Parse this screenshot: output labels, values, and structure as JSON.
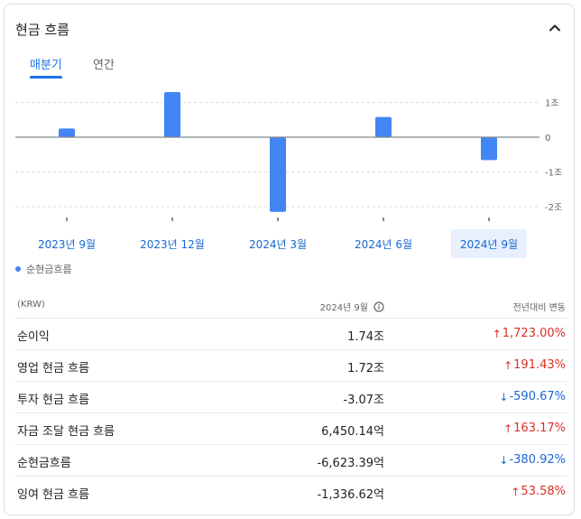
{
  "header": {
    "title": "현금 흐름"
  },
  "tabs": [
    {
      "label": "매분기"
    },
    {
      "label": "연간"
    }
  ],
  "chart_data": {
    "type": "bar",
    "categories": [
      "2023년 9월",
      "2023년 12월",
      "2024년 3월",
      "2024년 6월",
      "2024년 9월"
    ],
    "series": [
      {
        "name": "순현금흐름",
        "values": [
          0.25,
          1.3,
          -2.15,
          0.58,
          -0.66
        ]
      }
    ],
    "y_unit": "조",
    "ylim": [
      -2.2,
      1.2
    ],
    "yticks": [
      {
        "value": 1,
        "label": "1조"
      },
      {
        "value": 0,
        "label": "0"
      },
      {
        "value": -1,
        "label": "-1조"
      },
      {
        "value": -2,
        "label": "-2조"
      }
    ],
    "selected_index": 4,
    "bar_color": "#4285f4"
  },
  "legend": {
    "label": "순현금흐름"
  },
  "table": {
    "headers": {
      "unit": "(KRW)",
      "period": "2024년 9월",
      "change": "전년대비 변동"
    },
    "rows": [
      {
        "label": "순이익",
        "value": "1.74조",
        "change": "1,723.00%",
        "direction": "up"
      },
      {
        "label": "영업 현금 흐름",
        "value": "1.72조",
        "change": "191.43%",
        "direction": "up"
      },
      {
        "label": "투자 현금 흐름",
        "value": "-3.07조",
        "change": "-590.67%",
        "direction": "down"
      },
      {
        "label": "자금 조달 현금 흐름",
        "value": "6,450.14억",
        "change": "163.17%",
        "direction": "up"
      },
      {
        "label": "순현금흐름",
        "value": "-6,623.39억",
        "change": "-380.92%",
        "direction": "down"
      },
      {
        "label": "잉여 현금 흐름",
        "value": "-1,336.62억",
        "change": "53.58%",
        "direction": "up"
      }
    ]
  },
  "colors": {
    "accent": "#1a73e8",
    "positive": "#d93025",
    "negative": "#1967d2",
    "bar": "#4285f4"
  }
}
